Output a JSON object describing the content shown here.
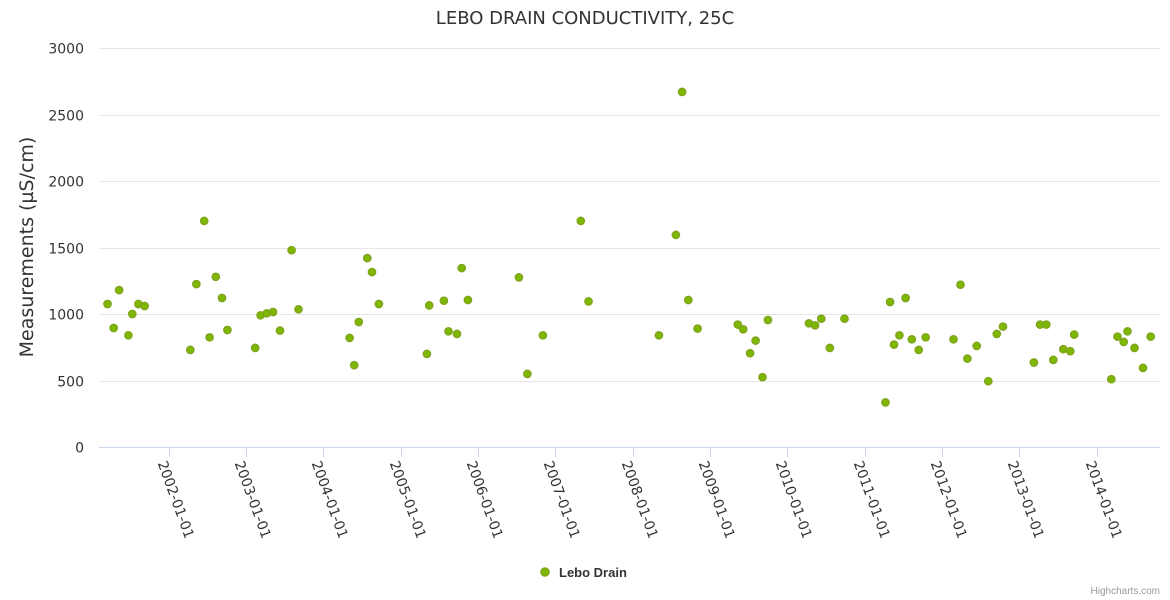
{
  "chart_data": {
    "type": "scatter",
    "title": "LEBO DRAIN CONDUCTIVITY, 25C",
    "xlabel": "",
    "ylabel": "Measurements (µS/cm)",
    "ylim": [
      0,
      3000
    ],
    "yticks": [
      0,
      500,
      1000,
      1500,
      2000,
      2500,
      3000
    ],
    "xlim": [
      2001.1,
      2014.82
    ],
    "xticks": [
      {
        "value": 2002,
        "label": "2002-01-01"
      },
      {
        "value": 2003,
        "label": "2003-01-01"
      },
      {
        "value": 2004,
        "label": "2004-01-01"
      },
      {
        "value": 2005,
        "label": "2005-01-01"
      },
      {
        "value": 2006,
        "label": "2006-01-01"
      },
      {
        "value": 2007,
        "label": "2007-01-01"
      },
      {
        "value": 2008,
        "label": "2008-01-01"
      },
      {
        "value": 2009,
        "label": "2009-01-01"
      },
      {
        "value": 2010,
        "label": "2010-01-01"
      },
      {
        "value": 2011,
        "label": "2011-01-01"
      },
      {
        "value": 2012,
        "label": "2012-01-01"
      },
      {
        "value": 2013,
        "label": "2013-01-01"
      },
      {
        "value": 2014,
        "label": "2014-01-01"
      }
    ],
    "legend": "bottom-center",
    "series": [
      {
        "name": "Lebo Drain",
        "color": "#7fb800",
        "points": [
          [
            2001.21,
            1075
          ],
          [
            2001.29,
            895
          ],
          [
            2001.36,
            1180
          ],
          [
            2001.48,
            840
          ],
          [
            2001.53,
            1000
          ],
          [
            2001.61,
            1075
          ],
          [
            2001.69,
            1060
          ],
          [
            2002.28,
            730
          ],
          [
            2002.36,
            1225
          ],
          [
            2002.46,
            1700
          ],
          [
            2002.53,
            825
          ],
          [
            2002.61,
            1280
          ],
          [
            2002.69,
            1120
          ],
          [
            2002.76,
            880
          ],
          [
            2003.12,
            745
          ],
          [
            2003.19,
            990
          ],
          [
            2003.27,
            1005
          ],
          [
            2003.35,
            1015
          ],
          [
            2003.44,
            875
          ],
          [
            2003.59,
            1480
          ],
          [
            2003.68,
            1035
          ],
          [
            2004.34,
            820
          ],
          [
            2004.4,
            615
          ],
          [
            2004.46,
            940
          ],
          [
            2004.57,
            1420
          ],
          [
            2004.63,
            1315
          ],
          [
            2004.72,
            1075
          ],
          [
            2005.34,
            700
          ],
          [
            2005.37,
            1065
          ],
          [
            2005.56,
            1100
          ],
          [
            2005.62,
            870
          ],
          [
            2005.73,
            850
          ],
          [
            2005.79,
            1345
          ],
          [
            2005.87,
            1105
          ],
          [
            2006.53,
            1275
          ],
          [
            2006.64,
            550
          ],
          [
            2006.84,
            840
          ],
          [
            2007.33,
            1700
          ],
          [
            2007.43,
            1095
          ],
          [
            2008.34,
            840
          ],
          [
            2008.56,
            1595
          ],
          [
            2008.64,
            2670
          ],
          [
            2008.72,
            1105
          ],
          [
            2008.84,
            890
          ],
          [
            2009.36,
            920
          ],
          [
            2009.43,
            885
          ],
          [
            2009.52,
            705
          ],
          [
            2009.59,
            800
          ],
          [
            2009.68,
            525
          ],
          [
            2009.75,
            955
          ],
          [
            2010.28,
            930
          ],
          [
            2010.36,
            915
          ],
          [
            2010.44,
            965
          ],
          [
            2010.55,
            745
          ],
          [
            2010.74,
            965
          ],
          [
            2011.27,
            335
          ],
          [
            2011.33,
            1090
          ],
          [
            2011.38,
            770
          ],
          [
            2011.45,
            840
          ],
          [
            2011.53,
            1120
          ],
          [
            2011.61,
            810
          ],
          [
            2011.7,
            730
          ],
          [
            2011.79,
            825
          ],
          [
            2012.15,
            810
          ],
          [
            2012.24,
            1220
          ],
          [
            2012.33,
            665
          ],
          [
            2012.45,
            760
          ],
          [
            2012.6,
            495
          ],
          [
            2012.71,
            850
          ],
          [
            2012.79,
            905
          ],
          [
            2013.19,
            635
          ],
          [
            2013.27,
            920
          ],
          [
            2013.35,
            920
          ],
          [
            2013.44,
            655
          ],
          [
            2013.57,
            735
          ],
          [
            2013.66,
            720
          ],
          [
            2013.71,
            845
          ],
          [
            2014.19,
            510
          ],
          [
            2014.27,
            830
          ],
          [
            2014.35,
            790
          ],
          [
            2014.4,
            870
          ],
          [
            2014.49,
            745
          ],
          [
            2014.6,
            595
          ],
          [
            2014.7,
            830
          ]
        ]
      }
    ]
  },
  "credits": "Highcharts.com"
}
